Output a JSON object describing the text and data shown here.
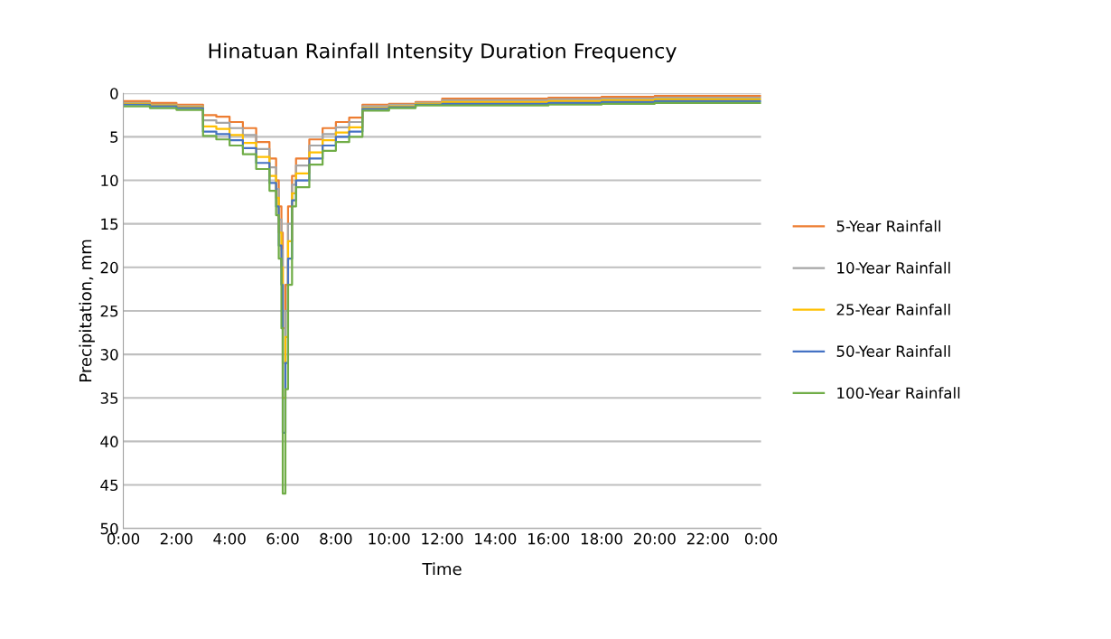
{
  "chart_data": {
    "type": "step",
    "title": "Hinatuan Rainfall Intensity Duration Frequency",
    "xlabel": "Time",
    "ylabel": "Precipitation, mm",
    "x": [
      0,
      1,
      2,
      3,
      3.5,
      4,
      4.5,
      5,
      5.5,
      5.75,
      5.85,
      5.95,
      6.0,
      6.1,
      6.2,
      6.35,
      6.5,
      7,
      7.5,
      8,
      8.5,
      9,
      10,
      11,
      12,
      14,
      16,
      18,
      20,
      24
    ],
    "series": [
      {
        "name": "5-Year Rainfall",
        "color": "#ed7d31",
        "values": [
          0.9,
          1.1,
          1.3,
          2.5,
          2.7,
          3.3,
          4.0,
          5.6,
          7.5,
          10,
          13,
          16,
          27,
          22,
          13,
          9.5,
          7.5,
          5.3,
          4,
          3.3,
          2.8,
          1.3,
          1.2,
          1.0,
          0.6,
          0.6,
          0.5,
          0.4,
          0.3,
          0.3
        ]
      },
      {
        "name": "10-Year Rainfall",
        "color": "#a5a5a5",
        "values": [
          1.1,
          1.3,
          1.5,
          3.1,
          3.4,
          4.0,
          4.8,
          6.4,
          8.5,
          11,
          14.5,
          18,
          31,
          25,
          15,
          10.5,
          8.3,
          6,
          4.7,
          3.9,
          3.3,
          1.5,
          1.3,
          1.1,
          0.8,
          0.8,
          0.7,
          0.6,
          0.5,
          0.5
        ]
      },
      {
        "name": "25-Year Rainfall",
        "color": "#ffc000",
        "values": [
          1.2,
          1.4,
          1.6,
          3.8,
          4.1,
          4.8,
          5.7,
          7.3,
          9.5,
          12,
          16,
          20,
          35,
          28,
          17,
          11.5,
          9.2,
          6.8,
          5.4,
          4.5,
          3.9,
          1.7,
          1.5,
          1.2,
          1.0,
          1.0,
          0.9,
          0.8,
          0.7,
          0.7
        ]
      },
      {
        "name": "50-Year Rainfall",
        "color": "#4472c4",
        "values": [
          1.3,
          1.5,
          1.7,
          4.4,
          4.7,
          5.4,
          6.3,
          8.0,
          10.3,
          13,
          17.5,
          22,
          39,
          31,
          19,
          12.3,
          10,
          7.5,
          6,
          5,
          4.4,
          1.8,
          1.6,
          1.3,
          1.2,
          1.2,
          1.1,
          1.0,
          0.9,
          0.9
        ]
      },
      {
        "name": "100-Year Rainfall",
        "color": "#70ad47",
        "values": [
          1.5,
          1.7,
          1.9,
          4.9,
          5.3,
          6.0,
          7.0,
          8.7,
          11.2,
          14,
          19,
          27,
          46,
          34,
          22,
          13,
          10.8,
          8.2,
          6.6,
          5.6,
          5.0,
          2.0,
          1.7,
          1.4,
          1.4,
          1.4,
          1.3,
          1.2,
          1.1,
          1.1
        ]
      }
    ],
    "xlim": [
      0,
      24
    ],
    "xticks": [
      {
        "value": 0,
        "label": "0:00"
      },
      {
        "value": 2,
        "label": "2:00"
      },
      {
        "value": 4,
        "label": "4:00"
      },
      {
        "value": 6,
        "label": "6:00"
      },
      {
        "value": 8,
        "label": "8:00"
      },
      {
        "value": 10,
        "label": "10:00"
      },
      {
        "value": 12,
        "label": "12:00"
      },
      {
        "value": 14,
        "label": "14:00"
      },
      {
        "value": 16,
        "label": "16:00"
      },
      {
        "value": 18,
        "label": "18:00"
      },
      {
        "value": 20,
        "label": "20:00"
      },
      {
        "value": 22,
        "label": "22:00"
      },
      {
        "value": 24,
        "label": "0:00"
      }
    ],
    "ylim": [
      50,
      0
    ],
    "yticks": [
      0,
      5,
      10,
      15,
      20,
      25,
      30,
      35,
      40,
      45,
      50
    ],
    "grid": "y",
    "legend": "right",
    "line_style": "solid",
    "marker": "none"
  }
}
